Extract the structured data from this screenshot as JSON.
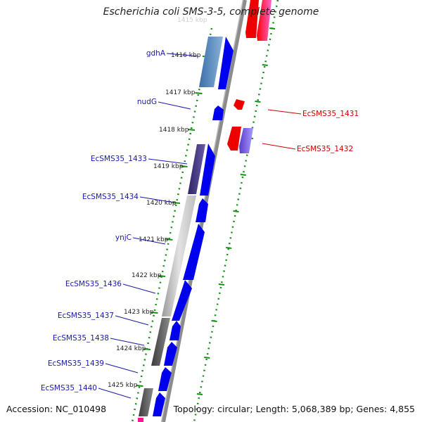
{
  "title": "Escherichia coli SMS-3-5, complete genome",
  "footer": {
    "accession": "Accession: NC_010498",
    "summary": "Topology: circular; Length: 5,068,389 bp; Genes: 4,855"
  },
  "top_faded_label": "1415 kbp",
  "kbp_ticks": [
    {
      "label": "1416 kbp",
      "kbp": 1416
    },
    {
      "label": "1417 kbp",
      "kbp": 1417
    },
    {
      "label": "1418 kbp",
      "kbp": 1418
    },
    {
      "label": "1419 kbp",
      "kbp": 1419
    },
    {
      "label": "1420 kbp",
      "kbp": 1420
    },
    {
      "label": "1421 kbp",
      "kbp": 1421
    },
    {
      "label": "1422 kbp",
      "kbp": 1422
    },
    {
      "label": "1423 kbp",
      "kbp": 1423
    },
    {
      "label": "1424 kbp",
      "kbp": 1424
    },
    {
      "label": "1425 kbp",
      "kbp": 1425
    }
  ],
  "forward_genes_labels": [
    {
      "name": "gdhA"
    },
    {
      "name": "nudG"
    },
    {
      "name": "EcSMS35_1433"
    },
    {
      "name": "EcSMS35_1434"
    },
    {
      "name": "ynjC"
    },
    {
      "name": "EcSMS35_1436"
    },
    {
      "name": "EcSMS35_1437"
    },
    {
      "name": "EcSMS35_1438"
    },
    {
      "name": "EcSMS35_1439"
    },
    {
      "name": "EcSMS35_1440"
    }
  ],
  "reverse_genes_labels": [
    {
      "name": "EcSMS35_1431"
    },
    {
      "name": "EcSMS35_1432"
    }
  ],
  "colors": {
    "forward_gene": "#0000ee",
    "reverse_gene": "#ee0000",
    "forward_label": "#1a1aa6",
    "reverse_label": "#cc0000",
    "backbone": "#8c8c8c",
    "tick": "#1a8c1a",
    "pink_gene": "#ff1493",
    "purple_gene": "#7b68ee"
  }
}
